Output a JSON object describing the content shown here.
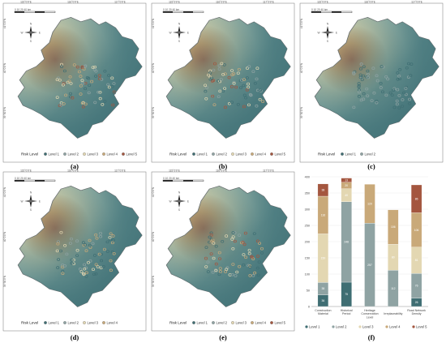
{
  "figure": {
    "panel_captions": [
      "(a)",
      "(b)",
      "(c)",
      "(d)",
      "(e)",
      "(f)"
    ],
    "legend_title": "Risk Level",
    "map_legends": [
      [
        "Level 1",
        "Level 2",
        "Level 3",
        "Level 4",
        "Level 5"
      ],
      [
        "Level 1",
        "Level 2",
        "Level 3",
        "Level 4",
        "Level 5"
      ],
      [
        "Level 1",
        "Level 2"
      ],
      [
        "Level 1",
        "Level 2",
        "Level 3",
        "Level 4"
      ],
      [
        "Level 1",
        "Level 2",
        "Level 3",
        "Level 4",
        "Level 5"
      ]
    ],
    "top_coord_labels": [
      "115°0'0\"E",
      "116°0'0\"E",
      "117°0'0\"E"
    ],
    "side_coord_labels": [
      "41°0'0\"N",
      "40°0'0\"N",
      "39°30'0\"N"
    ],
    "north_arrow_letters": [
      "N",
      "S",
      "W",
      "E"
    ],
    "scale_bar_label": "0 10 20 40 km"
  },
  "colors": {
    "level1": "#3f6e73",
    "level2": "#8fa3a3",
    "level3": "#e3d7b2",
    "level4": "#c9a979",
    "level5": "#a4563f",
    "terrain_low": "#4f7f84",
    "terrain_mid": "#d6d3aa",
    "terrain_high": "#b5582e"
  },
  "chart_data": {
    "type": "bar",
    "stacked": true,
    "categories": [
      "Construction Material",
      "Historical Period",
      "Heritage Conservation Level",
      "Irreplaceability",
      "Road Network Density"
    ],
    "ylim": [
      0,
      400
    ],
    "yticks": [
      0,
      50,
      100,
      150,
      200,
      250,
      300,
      350,
      400
    ],
    "legend_position": "bottom",
    "series": [
      {
        "name": "Level 1",
        "color": "#3f6e73",
        "values": [
          36,
          75,
          0,
          0,
          26
        ]
      },
      {
        "name": "Level 2",
        "color": "#8fa3a3",
        "values": [
          38,
          248,
          257,
          112,
          76
        ]
      },
      {
        "name": "Level 3",
        "color": "#e3d7b2",
        "values": [
          150,
          40,
          0,
          80,
          81
        ]
      },
      {
        "name": "Level 4",
        "color": "#c9a979",
        "values": [
          116,
          20,
          120,
          106,
          106
        ]
      },
      {
        "name": "Level 5",
        "color": "#a4563f",
        "values": [
          38,
          13,
          0,
          0,
          86
        ]
      }
    ],
    "data_labels": [
      [
        "36",
        "38",
        "150",
        "116",
        "38"
      ],
      [
        "75",
        "248",
        "40",
        "20",
        "13"
      ],
      [
        "",
        "257",
        "",
        "120",
        ""
      ],
      [
        "",
        "112",
        "80",
        "106",
        ""
      ],
      [
        "26",
        "76",
        "81",
        "106",
        "86"
      ]
    ]
  }
}
